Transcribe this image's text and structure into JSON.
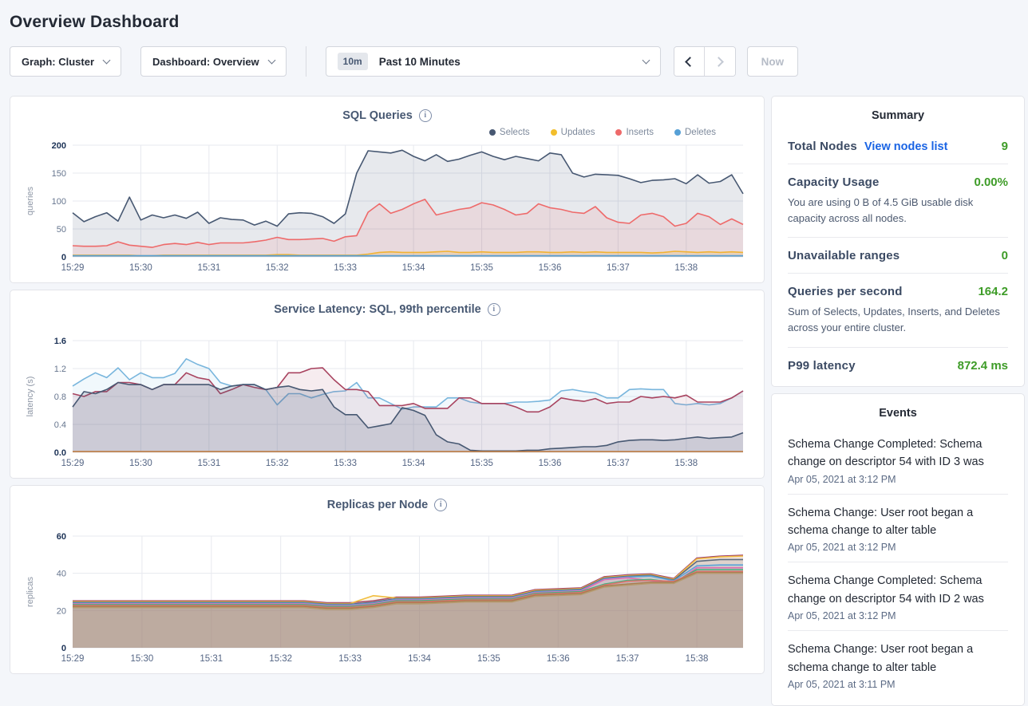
{
  "page_title": "Overview Dashboard",
  "toolbar": {
    "graph_selector": "Graph: Cluster",
    "dashboard_selector": "Dashboard: Overview",
    "time_badge": "10m",
    "time_label": "Past 10 Minutes",
    "now_label": "Now"
  },
  "summary": {
    "title": "Summary",
    "value_color": "#3e9c28",
    "link_color": "#1a64e4",
    "rows": [
      {
        "label": "Total Nodes",
        "link": "View nodes list",
        "value": "9"
      },
      {
        "label": "Capacity Usage",
        "value": "0.00%",
        "subtext": "You are using 0 B of 4.5 GiB usable disk capacity across all nodes."
      },
      {
        "label": "Unavailable ranges",
        "value": "0"
      },
      {
        "label": "Queries per second",
        "value": "164.2",
        "subtext": "Sum of Selects, Updates, Inserts, and Deletes across your entire cluster."
      },
      {
        "label": "P99 latency",
        "value": "872.4 ms"
      }
    ]
  },
  "events": {
    "title": "Events",
    "items": [
      {
        "message": "Schema Change Completed: Schema change on descriptor 54 with ID 3 was",
        "timestamp": "Apr 05, 2021 at 3:12 PM"
      },
      {
        "message": "Schema Change: User root began a schema change to alter table",
        "timestamp": "Apr 05, 2021 at 3:12 PM"
      },
      {
        "message": "Schema Change Completed: Schema change on descriptor 54 with ID 2 was",
        "timestamp": "Apr 05, 2021 at 3:12 PM"
      },
      {
        "message": "Schema Change: User root began a schema change to alter table",
        "timestamp": "Apr 05, 2021 at 3:11 PM"
      }
    ]
  },
  "chart_data": [
    {
      "type": "area",
      "title": "SQL Queries",
      "ylabel": "queries",
      "ylim": [
        0,
        200
      ],
      "yticks": [
        0,
        50,
        100,
        150,
        200
      ],
      "ytick_labels": [
        "0",
        "50",
        "100",
        "150",
        "200"
      ],
      "x_tick_labels": [
        "15:29",
        "15:30",
        "15:31",
        "15:32",
        "15:33",
        "15:34",
        "15:35",
        "15:36",
        "15:37",
        "15:38"
      ],
      "x_tick_indices": [
        0,
        6,
        12,
        18,
        24,
        30,
        36,
        42,
        48,
        54
      ],
      "legend": true,
      "series": [
        {
          "name": "Selects",
          "color": "#475872",
          "fill_opacity": 0.13,
          "values": [
            79,
            63,
            72,
            79,
            64,
            107,
            66,
            75,
            70,
            75,
            69,
            80,
            60,
            70,
            67,
            66,
            57,
            64,
            55,
            77,
            79,
            78,
            72,
            60,
            77,
            150,
            190,
            188,
            186,
            191,
            180,
            172,
            183,
            171,
            175,
            182,
            188,
            180,
            174,
            180,
            176,
            172,
            186,
            183,
            150,
            143,
            148,
            147,
            146,
            140,
            133,
            137,
            138,
            140,
            131,
            147,
            132,
            135,
            147,
            113
          ]
        },
        {
          "name": "Updates",
          "color": "#f2be2c",
          "fill_opacity": 0.2,
          "values": [
            3,
            3,
            3,
            3,
            3,
            3,
            2,
            2,
            3,
            3,
            3,
            3,
            3,
            3,
            3,
            3,
            3,
            3,
            4,
            4,
            3,
            3,
            3,
            3,
            3,
            3,
            5,
            8,
            9,
            8,
            8,
            8,
            9,
            10,
            8,
            8,
            9,
            8,
            8,
            8,
            9,
            9,
            8,
            8,
            9,
            8,
            9,
            8,
            8,
            8,
            8,
            7,
            8,
            10,
            9,
            8,
            9,
            8,
            9,
            8
          ]
        },
        {
          "name": "Inserts",
          "color": "#ee6a6a",
          "fill_opacity": 0.12,
          "values": [
            20,
            19,
            19,
            20,
            27,
            21,
            19,
            17,
            22,
            24,
            22,
            26,
            22,
            25,
            25,
            25,
            27,
            30,
            35,
            31,
            31,
            32,
            33,
            28,
            36,
            38,
            80,
            95,
            78,
            85,
            95,
            103,
            75,
            80,
            85,
            88,
            97,
            93,
            85,
            75,
            78,
            95,
            88,
            85,
            80,
            78,
            90,
            70,
            62,
            60,
            75,
            78,
            72,
            55,
            60,
            78,
            72,
            58,
            68,
            58
          ]
        },
        {
          "name": "Deletes",
          "color": "#56a0d6",
          "fill_opacity": 0.25,
          "values": [
            2,
            2,
            2,
            2,
            2,
            2,
            2,
            2,
            2,
            2,
            2,
            2,
            2,
            2,
            2,
            2,
            2,
            2,
            2,
            2,
            2,
            2,
            2,
            2,
            2,
            2,
            2,
            2,
            2,
            2,
            2,
            2,
            2,
            2,
            2,
            2,
            2,
            2,
            2,
            2,
            2,
            2,
            2,
            2,
            2,
            2,
            2,
            2,
            2,
            2,
            2,
            2,
            2,
            2,
            2,
            2,
            2,
            2,
            2,
            2
          ]
        }
      ]
    },
    {
      "type": "area",
      "title": "Service Latency: SQL, 99th percentile",
      "ylabel": "latency (s)",
      "ylim": [
        0,
        1.6
      ],
      "yticks": [
        0,
        0.4,
        0.8,
        1.2,
        1.6
      ],
      "ytick_labels": [
        "0.0",
        "0.4",
        "0.8",
        "1.2",
        "1.6"
      ],
      "x_tick_labels": [
        "15:29",
        "15:30",
        "15:31",
        "15:32",
        "15:33",
        "15:34",
        "15:35",
        "15:36",
        "15:37",
        "15:38"
      ],
      "x_tick_indices": [
        0,
        6,
        12,
        18,
        24,
        30,
        36,
        42,
        48,
        54
      ],
      "legend": false,
      "series": [
        {
          "color": "#79b6dd",
          "fill_opacity": 0.1,
          "values": [
            0.95,
            1.05,
            1.14,
            1.07,
            1.21,
            1.04,
            1.14,
            1.07,
            1.07,
            1.13,
            1.34,
            1.26,
            1.2,
            1.0,
            0.95,
            0.97,
            0.97,
            0.9,
            0.68,
            0.84,
            0.84,
            0.78,
            0.83,
            0.87,
            0.88,
            1.0,
            0.78,
            0.78,
            0.7,
            0.62,
            0.65,
            0.65,
            0.65,
            0.78,
            0.78,
            0.72,
            0.7,
            0.7,
            0.7,
            0.72,
            0.72,
            0.73,
            0.75,
            0.88,
            0.9,
            0.87,
            0.85,
            0.78,
            0.78,
            0.9,
            0.91,
            0.9,
            0.9,
            0.7,
            0.68,
            0.7,
            0.68,
            0.7,
            0.78,
            0.88
          ]
        },
        {
          "color": "#a8435f",
          "fill_opacity": 0.1,
          "values": [
            0.84,
            0.8,
            0.87,
            0.87,
            1.0,
            1.0,
            0.97,
            0.9,
            0.97,
            0.97,
            1.14,
            1.07,
            1.04,
            0.84,
            0.9,
            0.97,
            0.93,
            0.9,
            0.93,
            1.14,
            1.14,
            1.2,
            1.21,
            1.04,
            0.9,
            0.9,
            0.87,
            0.67,
            0.67,
            0.67,
            0.7,
            0.63,
            0.63,
            0.63,
            0.78,
            0.78,
            0.7,
            0.7,
            0.7,
            0.65,
            0.58,
            0.58,
            0.65,
            0.78,
            0.75,
            0.73,
            0.77,
            0.7,
            0.72,
            0.72,
            0.8,
            0.78,
            0.8,
            0.78,
            0.82,
            0.72,
            0.72,
            0.72,
            0.78,
            0.88
          ]
        },
        {
          "color": "#475872",
          "fill_opacity": 0.18,
          "values": [
            0.65,
            0.87,
            0.84,
            0.9,
            1.0,
            0.97,
            0.97,
            0.9,
            0.97,
            0.97,
            0.97,
            0.97,
            0.97,
            0.9,
            0.95,
            0.97,
            0.97,
            0.9,
            0.93,
            0.95,
            0.9,
            0.88,
            0.9,
            0.65,
            0.54,
            0.54,
            0.35,
            0.38,
            0.41,
            0.64,
            0.6,
            0.53,
            0.25,
            0.15,
            0.12,
            0.03,
            0.02,
            0.02,
            0.02,
            0.02,
            0.03,
            0.03,
            0.05,
            0.06,
            0.07,
            0.08,
            0.08,
            0.1,
            0.15,
            0.17,
            0.18,
            0.18,
            0.17,
            0.18,
            0.2,
            0.22,
            0.2,
            0.21,
            0.22,
            0.28
          ]
        },
        {
          "color": "#bf7e45",
          "fill_opacity": 0.0,
          "values": [
            0.01,
            0.01,
            0.01,
            0.01,
            0.01,
            0.01,
            0.01,
            0.01,
            0.01,
            0.01,
            0.01,
            0.01,
            0.01,
            0.01,
            0.01,
            0.01,
            0.01,
            0.01,
            0.01,
            0.01,
            0.01,
            0.01,
            0.01,
            0.01,
            0.01,
            0.01,
            0.01,
            0.01,
            0.01,
            0.01,
            0.01,
            0.01,
            0.01,
            0.01,
            0.01,
            0.01,
            0.01,
            0.01,
            0.01,
            0.01,
            0.01,
            0.01,
            0.01,
            0.01,
            0.01,
            0.01,
            0.01,
            0.01,
            0.01,
            0.01,
            0.01,
            0.01,
            0.01,
            0.01,
            0.01,
            0.01,
            0.01,
            0.01,
            0.01,
            0.01
          ]
        }
      ]
    },
    {
      "type": "area",
      "title": "Replicas per Node",
      "ylabel": "replicas",
      "ylim": [
        0,
        60
      ],
      "yticks": [
        0,
        20,
        40,
        60
      ],
      "ytick_labels": [
        "0",
        "20",
        "40",
        "60"
      ],
      "x_tick_labels": [
        "15:29",
        "15:30",
        "15:31",
        "15:32",
        "15:33",
        "15:34",
        "15:35",
        "15:36",
        "15:37",
        "15:38"
      ],
      "x_tick_indices": [
        0,
        3,
        6,
        9,
        12,
        15,
        18,
        21,
        24,
        27
      ],
      "legend": false,
      "series": [
        {
          "color": "#9a3b6f",
          "fill_opacity": 0.12,
          "values": [
            25.2,
            25.2,
            25.2,
            25.2,
            25.2,
            25.2,
            25.2,
            25.2,
            25.2,
            25.2,
            25.2,
            24.2,
            24.2,
            25.2,
            27.2,
            27.2,
            27.7,
            28.2,
            28.2,
            28.2,
            31.2,
            31.7,
            32.2,
            38.2,
            39.2,
            39.7,
            37.2,
            48.2,
            49.2,
            49.7
          ]
        },
        {
          "color": "#f1bd3e",
          "fill_opacity": 0.12,
          "values": [
            24.8,
            24.8,
            24.8,
            24.8,
            24.8,
            24.8,
            24.8,
            24.8,
            24.8,
            24.8,
            24.8,
            23.8,
            23.8,
            28,
            26.8,
            26.8,
            27.3,
            27.8,
            27.8,
            27.8,
            30.8,
            31.3,
            31.8,
            37.8,
            38.8,
            39.3,
            36.8,
            47.8,
            48.8,
            49.3
          ]
        },
        {
          "color": "#5c6b7d",
          "fill_opacity": 0.12,
          "values": [
            24.4,
            24.4,
            24.4,
            24.4,
            24.4,
            24.4,
            24.4,
            24.4,
            24.4,
            24.4,
            24.4,
            23.4,
            23.4,
            24.4,
            26.4,
            26.4,
            26.9,
            27.4,
            27.4,
            27.4,
            30.4,
            30.9,
            31.4,
            37.4,
            38.4,
            38.9,
            36.4,
            46.4,
            47.4,
            47.4
          ]
        },
        {
          "color": "#5ba3d9",
          "fill_opacity": 0.12,
          "values": [
            24,
            24,
            24,
            24,
            24,
            24,
            24,
            24,
            24,
            24,
            24,
            23,
            23,
            24,
            26,
            26,
            26.5,
            27,
            27,
            27,
            30,
            30.5,
            31,
            37,
            38,
            38.5,
            36,
            44,
            44.5,
            44.5
          ]
        },
        {
          "color": "#e06db0",
          "fill_opacity": 0.12,
          "values": [
            23.6,
            23.6,
            23.6,
            23.6,
            23.6,
            23.6,
            23.6,
            23.6,
            23.6,
            23.6,
            23.6,
            22.6,
            22.6,
            23.6,
            25.6,
            25.6,
            26.1,
            26.6,
            26.6,
            26.6,
            29.6,
            30.1,
            30.6,
            36.6,
            37.6,
            36.1,
            34.6,
            43,
            43,
            43
          ]
        },
        {
          "color": "#47b07e",
          "fill_opacity": 0.12,
          "values": [
            23.2,
            23.2,
            23.2,
            23.2,
            23.2,
            23.2,
            23.2,
            23.2,
            23.2,
            23.2,
            23.2,
            22.2,
            22.2,
            23.2,
            25.2,
            25.2,
            25.7,
            26.2,
            26.2,
            26.2,
            29.2,
            29.7,
            30.2,
            34.2,
            36.2,
            36.7,
            35.2,
            42,
            42,
            42
          ]
        },
        {
          "color": "#e0726f",
          "fill_opacity": 0.12,
          "values": [
            22.7,
            22.7,
            22.7,
            22.7,
            22.7,
            22.7,
            22.7,
            22.7,
            22.7,
            22.7,
            22.7,
            21.7,
            21.7,
            22.7,
            24.7,
            24.7,
            25.2,
            25.7,
            25.7,
            25.7,
            28.7,
            29.2,
            29.7,
            33.7,
            35.7,
            36.2,
            35.7,
            41,
            41,
            41
          ]
        },
        {
          "color": "#a97c50",
          "fill_opacity": 0.12,
          "values": [
            22.2,
            22.2,
            22.2,
            22.2,
            22.2,
            22.2,
            22.2,
            22.2,
            22.2,
            22.2,
            22.2,
            21.2,
            21.2,
            22.2,
            24.2,
            24.2,
            24.7,
            25.2,
            25.2,
            25.2,
            28.2,
            28.7,
            29.2,
            33.2,
            34.2,
            35.2,
            35.2,
            40.5,
            40.5,
            40.5
          ]
        },
        {
          "color": "#b59a6f",
          "fill_opacity": 0.12,
          "values": [
            21.6,
            21.6,
            21.6,
            21.6,
            21.6,
            21.6,
            21.6,
            21.6,
            21.6,
            21.6,
            21.6,
            20.6,
            20.6,
            21.6,
            23.6,
            23.6,
            24.1,
            24.6,
            24.6,
            24.6,
            27.6,
            28.1,
            28.6,
            32.6,
            33.6,
            34.6,
            34.6,
            40,
            40,
            40
          ]
        }
      ]
    }
  ]
}
